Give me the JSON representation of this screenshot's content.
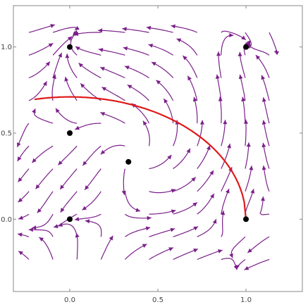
{
  "colors": {
    "stream": "#7b1f8a",
    "curve": "#e01818",
    "point": "#000000",
    "frame": "#888888",
    "tick_text": "#444444",
    "background": "#ffffff"
  },
  "chart_data": {
    "type": "scatter",
    "subtype": "stream-plot",
    "title": "",
    "xlabel": "",
    "ylabel": "",
    "xlim": [
      -0.32,
      1.32
    ],
    "ylim": [
      -0.42,
      1.24
    ],
    "grid": false,
    "legend": "none",
    "x_ticks": [
      {
        "value": 0.0,
        "label": "0.0"
      },
      {
        "value": 0.5,
        "label": "0.5"
      },
      {
        "value": 1.0,
        "label": "1.0"
      }
    ],
    "y_ticks": [
      {
        "value": 0.0,
        "label": "0.0"
      },
      {
        "value": 0.5,
        "label": "0.5"
      },
      {
        "value": 1.0,
        "label": "1.0"
      }
    ],
    "stream_region": {
      "x": [
        -0.3,
        1.2
      ],
      "y": [
        -0.3,
        1.15
      ]
    },
    "equilibria": [
      {
        "x": 0.0,
        "y": 0.0
      },
      {
        "x": 0.0,
        "y": 0.5
      },
      {
        "x": 0.0,
        "y": 1.0
      },
      {
        "x": 0.333,
        "y": 0.333
      },
      {
        "x": 1.0,
        "y": 1.0
      },
      {
        "x": 1.0,
        "y": 0.0
      }
    ],
    "curve": {
      "description": "circular arc",
      "center": [
        0.0,
        0.0
      ],
      "radius": 1.0,
      "x_range": [
        -0.2,
        1.0
      ],
      "y_min": 0.0
    }
  }
}
